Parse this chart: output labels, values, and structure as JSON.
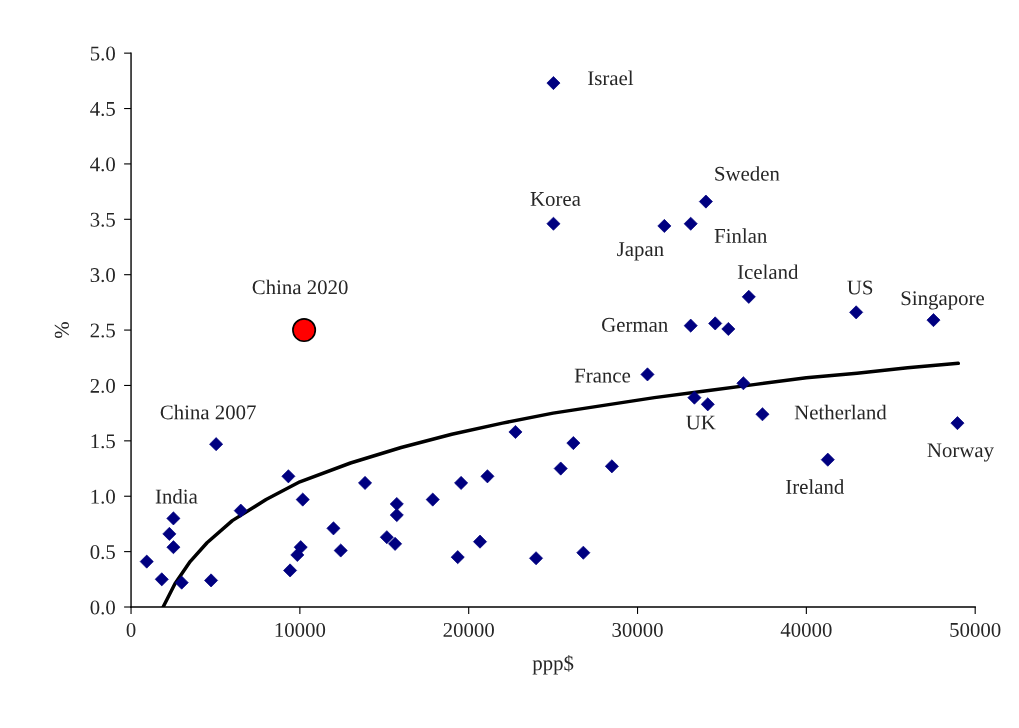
{
  "chart_data": {
    "type": "scatter",
    "xlabel": "ppp$",
    "ylabel": "%",
    "xlim": [
      0,
      50000
    ],
    "ylim": [
      0,
      5.0
    ],
    "xticks": [
      0,
      10000,
      20000,
      30000,
      40000,
      50000
    ],
    "yticks": [
      {
        "value": 0,
        "label": "0.0"
      },
      {
        "value": 0.5,
        "label": "0.5"
      },
      {
        "value": 1,
        "label": "1.0"
      },
      {
        "value": 1.5,
        "label": "1.5"
      },
      {
        "value": 2,
        "label": "2.0"
      },
      {
        "value": 2.5,
        "label": "2.5"
      },
      {
        "value": 3,
        "label": "3.0"
      },
      {
        "value": 3.5,
        "label": "3.5"
      },
      {
        "value": 4,
        "label": "4.0"
      },
      {
        "value": 4.5,
        "label": "4.5"
      },
      {
        "value": 5,
        "label": "5.0"
      }
    ],
    "grid": false,
    "legend": false,
    "marker": "diamond",
    "series": [
      {
        "color": "#000080",
        "x": [
          5040,
          9320,
          10170,
          13860,
          15740,
          15740,
          2510,
          2270,
          2510,
          930,
          1820,
          3000,
          4740,
          6500,
          11990,
          12420,
          10050,
          9850,
          9420,
          15150,
          15640,
          22770,
          26200,
          25450,
          28480,
          21110,
          19550,
          17870,
          20670,
          19350,
          23990,
          26790,
          25020,
          25020,
          31590,
          33150,
          34050,
          36590,
          42950,
          47530,
          33150,
          34600,
          35380,
          30590,
          36270,
          33370,
          34160,
          37400,
          41270,
          48950
        ],
        "values": [
          1.47,
          1.18,
          0.97,
          1.12,
          0.93,
          0.83,
          0.8,
          0.66,
          0.54,
          0.41,
          0.25,
          0.22,
          0.24,
          0.87,
          0.71,
          0.51,
          0.54,
          0.47,
          0.33,
          0.63,
          0.57,
          1.58,
          1.48,
          1.25,
          1.27,
          1.18,
          1.12,
          0.97,
          0.59,
          0.45,
          0.44,
          0.49,
          4.73,
          3.46,
          3.44,
          3.46,
          3.66,
          2.8,
          2.66,
          2.59,
          2.54,
          2.56,
          2.51,
          2.1,
          2.02,
          1.89,
          1.83,
          1.74,
          1.33,
          1.66
        ]
      },
      {
        "color": "#ff0000",
        "marker": "circle",
        "x": [
          10250
        ],
        "values": [
          2.5
        ]
      },
      {
        "type": "line",
        "color": "#000000",
        "marker": "none",
        "line_style": "solid",
        "x": [
          1900,
          2600,
          3500,
          4500,
          6000,
          8000,
          10000,
          13000,
          16000,
          19000,
          22000,
          25000,
          28000,
          31000,
          34000,
          37000,
          40000,
          43000,
          46000,
          49000
        ],
        "values": [
          0,
          0.21,
          0.41,
          0.58,
          0.78,
          0.97,
          1.13,
          1.3,
          1.44,
          1.56,
          1.66,
          1.75,
          1.82,
          1.89,
          1.95,
          2.01,
          2.07,
          2.11,
          2.16,
          2.2
        ]
      }
    ],
    "annotations": [
      {
        "text": "Israel",
        "x": 25020,
        "y": 4.73
      },
      {
        "text": "Sweden",
        "x": 34050,
        "y": 3.66
      },
      {
        "text": "Korea",
        "x": 25020,
        "y": 3.46
      },
      {
        "text": "Japan",
        "x": 31590,
        "y": 3.44
      },
      {
        "text": "Finlan",
        "x": 33150,
        "y": 3.46
      },
      {
        "text": "Iceland",
        "x": 36590,
        "y": 2.8
      },
      {
        "text": "US",
        "x": 42950,
        "y": 2.66
      },
      {
        "text": "Singapore",
        "x": 47530,
        "y": 2.59
      },
      {
        "text": "German",
        "x": 33150,
        "y": 2.54
      },
      {
        "text": "France",
        "x": 30590,
        "y": 2.1
      },
      {
        "text": "UK",
        "x": 34160,
        "y": 1.83
      },
      {
        "text": "Netherland",
        "x": 37400,
        "y": 1.74
      },
      {
        "text": "Ireland",
        "x": 41270,
        "y": 1.33
      },
      {
        "text": "Norway",
        "x": 48950,
        "y": 1.66
      },
      {
        "text": "China 2020",
        "x": 10250,
        "y": 2.5
      },
      {
        "text": "China 2007",
        "x": 5040,
        "y": 1.47
      },
      {
        "text": "India",
        "x": 2510,
        "y": 0.8
      }
    ]
  }
}
